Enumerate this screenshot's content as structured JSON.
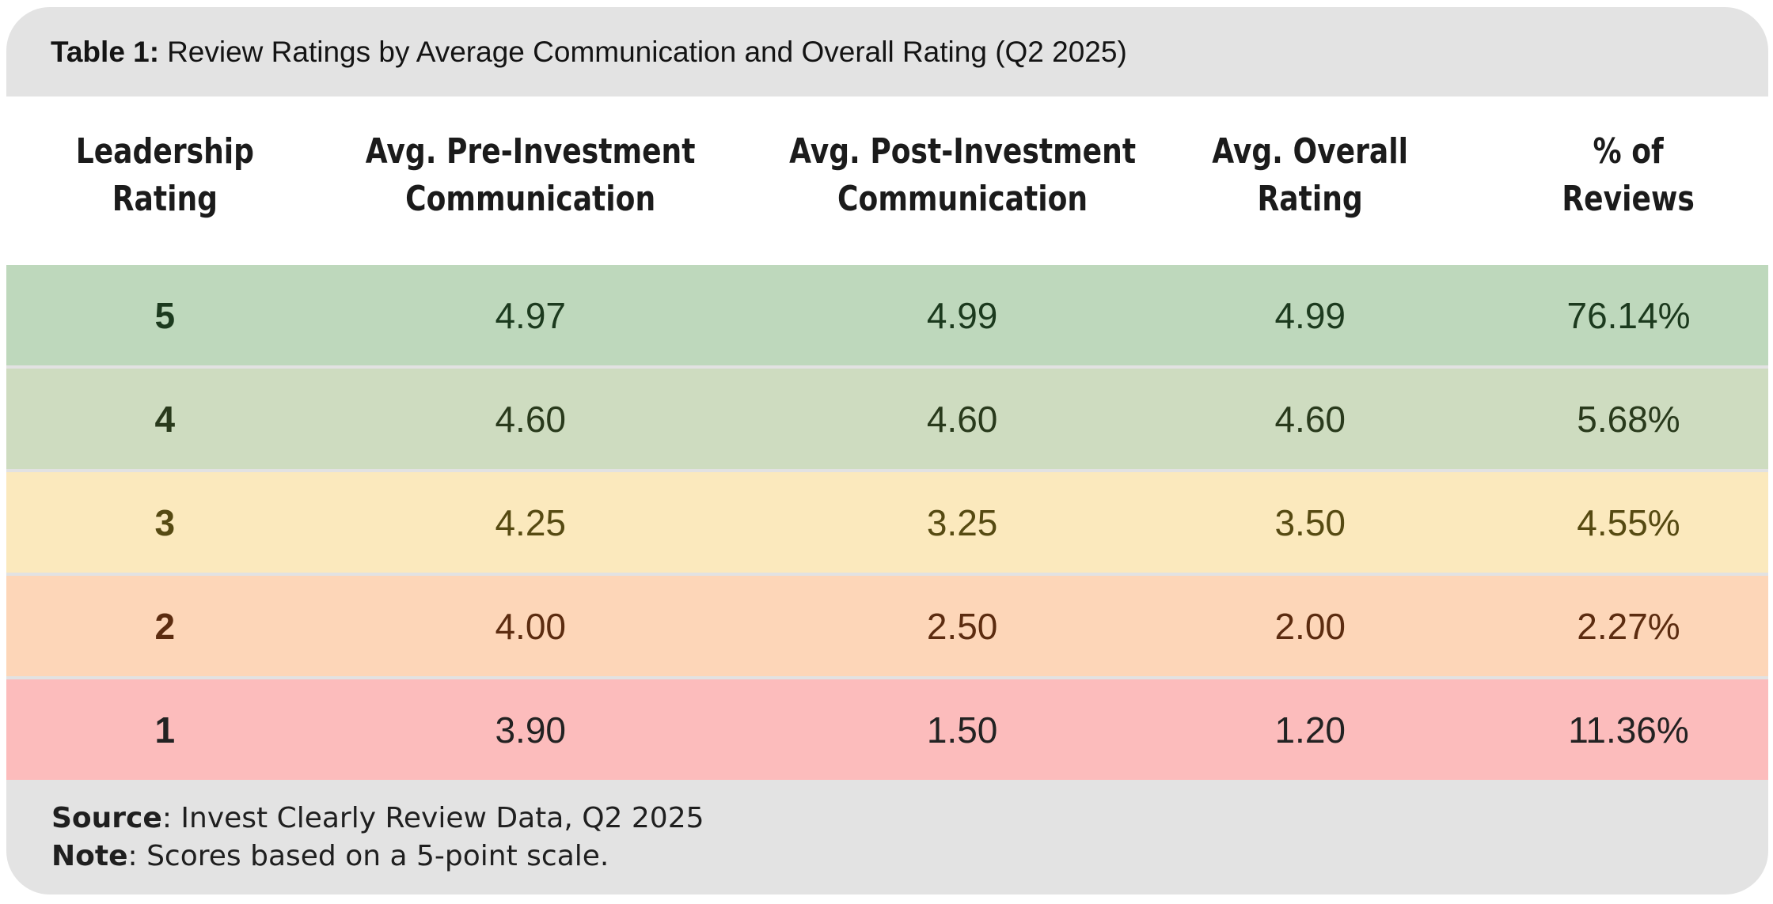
{
  "title": {
    "prefix": "Table 1:",
    "text": "Review Ratings by Average Communication and Overall Rating (Q2 2025)"
  },
  "table": {
    "columns": [
      "Leadership\nRating",
      "Avg. Pre-Investment\nCommunication",
      "Avg. Post-Investment\nCommunication",
      "Avg. Overall\nRating",
      "% of\nReviews"
    ],
    "rows": [
      {
        "bg": "#bed8bc",
        "fg": "#1c3a1e",
        "cells": [
          "5",
          "4.97",
          "4.99",
          "4.99",
          "76.14%"
        ]
      },
      {
        "bg": "#cedcc0",
        "fg": "#293a1c",
        "cells": [
          "4",
          "4.60",
          "4.60",
          "4.60",
          "5.68%"
        ]
      },
      {
        "bg": "#fbe9bd",
        "fg": "#564a12",
        "cells": [
          "3",
          "4.25",
          "3.25",
          "3.50",
          "4.55%"
        ]
      },
      {
        "bg": "#fdd6b8",
        "fg": "#5c2c10",
        "cells": [
          "2",
          "4.00",
          "2.50",
          "2.00",
          "2.27%"
        ]
      },
      {
        "bg": "#fcbcbc",
        "fg": "#222222",
        "cells": [
          "1",
          "3.90",
          "1.50",
          "1.20",
          "11.36%"
        ]
      }
    ]
  },
  "footer": {
    "source_label": "Source",
    "source_text": ": Invest Clearly Review Data, Q2 2025",
    "note_label": "Note",
    "note_text": ": Scores based on a 5-point scale."
  },
  "colors": {
    "title_bar_bg": "#e3e3e3",
    "footer_bg": "#e3e3e3",
    "separator": "#e2e2e2",
    "header_text": "#1b1b1b"
  },
  "chart_data": {
    "type": "table",
    "title": "Table 1: Review Ratings by Average Communication and Overall Rating (Q2 2025)",
    "columns": [
      "Leadership Rating",
      "Avg. Pre-Investment Communication",
      "Avg. Post-Investment Communication",
      "Avg. Overall Rating",
      "% of Reviews"
    ],
    "rows": [
      [
        5,
        4.97,
        4.99,
        4.99,
        "76.14%"
      ],
      [
        4,
        4.6,
        4.6,
        4.6,
        "5.68%"
      ],
      [
        3,
        4.25,
        3.25,
        3.5,
        "4.55%"
      ],
      [
        2,
        4.0,
        2.5,
        2.0,
        "2.27%"
      ],
      [
        1,
        3.9,
        1.5,
        1.2,
        "11.36%"
      ]
    ],
    "row_color_scale": "green (rating 5) through yellow and orange to red (rating 1)",
    "source": "Invest Clearly Review Data, Q2 2025",
    "note": "Scores based on a 5-point scale."
  }
}
